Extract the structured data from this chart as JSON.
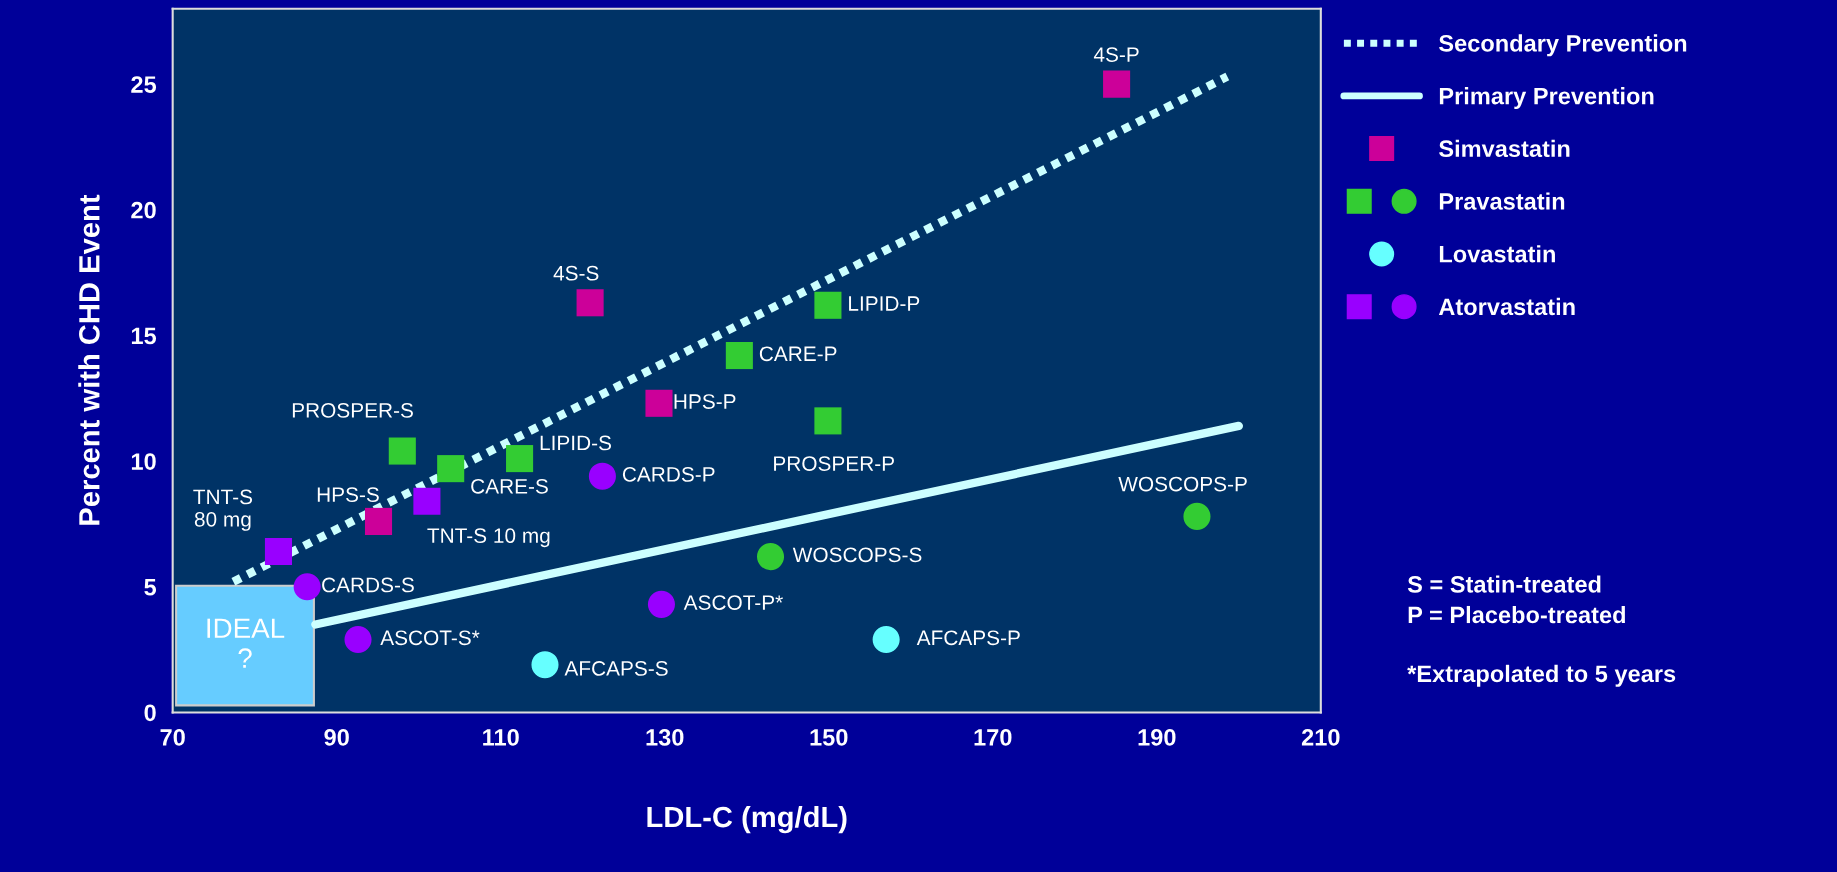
{
  "chart_data": {
    "type": "scatter",
    "xlabel": "LDL-C (mg/dL)",
    "ylabel": "Percent with CHD Event",
    "xlim": [
      70,
      210
    ],
    "xticks": [
      70,
      90,
      110,
      130,
      150,
      170,
      190,
      210
    ],
    "ylim": [
      0,
      28
    ],
    "yticks": [
      0,
      5,
      10,
      15,
      20,
      25
    ],
    "grid": false,
    "legend": "right",
    "series": [
      {
        "name": "Secondary Prevention",
        "type": "line",
        "color": "#ccffff",
        "line_style": "dotted",
        "marker": "none",
        "x": [
          77.4,
          198.6
        ],
        "values": [
          5.2,
          25.3
        ]
      },
      {
        "name": "Primary Prevention",
        "type": "line",
        "color": "#ccffff",
        "line_style": "solid",
        "marker": "none",
        "x": [
          87.4,
          200
        ],
        "values": [
          3.5,
          11.4
        ]
      },
      {
        "name": "Simvastatin",
        "color": "#cc0099",
        "marker": "square",
        "x": [
          185.1,
          120.9,
          129.3,
          95.1
        ],
        "values": [
          25.0,
          16.3,
          12.3,
          7.6
        ]
      },
      {
        "name": "Pravastatin",
        "color": "#33cc33",
        "marker": "square",
        "x": [
          149.9,
          139.1,
          149.9,
          98,
          103.9,
          112.3
        ],
        "values": [
          16.2,
          14.2,
          11.6,
          10.4,
          9.7,
          10.1
        ]
      },
      {
        "color": "#33cc33",
        "marker": "circle",
        "x": [
          194.9,
          142.9
        ],
        "values": [
          7.8,
          6.2
        ]
      },
      {
        "name": "Lovastatin",
        "color": "#66ffff",
        "marker": "circle",
        "x": [
          115.4,
          157
        ],
        "values": [
          1.9,
          2.9
        ]
      },
      {
        "name": "Atorvastatin",
        "color": "#9900ff",
        "marker": "square",
        "x": [
          82.9,
          101
        ],
        "values": [
          6.4,
          8.4
        ]
      },
      {
        "color": "#9900ff",
        "marker": "circle",
        "x": [
          86.4,
          122.4,
          92.6,
          129.6
        ],
        "values": [
          5.0,
          9.4,
          2.9,
          4.3
        ]
      }
    ],
    "annotations": [
      {
        "text": "4S-P",
        "x": 185.1,
        "y": 25.0
      },
      {
        "text": "4S-S",
        "x": 120.9,
        "y": 16.3
      },
      {
        "text": "HPS-P",
        "x": 129.3,
        "y": 12.3
      },
      {
        "text": "HPS-S",
        "x": 95.1,
        "y": 7.6
      },
      {
        "text": "LIPID-P",
        "x": 149.9,
        "y": 16.2
      },
      {
        "text": "CARE-P",
        "x": 139.1,
        "y": 14.2
      },
      {
        "text": "PROSPER-P",
        "x": 149.9,
        "y": 11.6
      },
      {
        "text": "PROSPER-S",
        "x": 98,
        "y": 10.4
      },
      {
        "text": "CARE-S",
        "x": 103.9,
        "y": 9.7
      },
      {
        "text": "LIPID-S",
        "x": 112.3,
        "y": 10.1
      },
      {
        "text": "WOSCOPS-P",
        "x": 194.9,
        "y": 7.8
      },
      {
        "text": "WOSCOPS-S",
        "x": 142.9,
        "y": 6.2
      },
      {
        "text": "AFCAPS-S",
        "x": 115.4,
        "y": 1.9
      },
      {
        "text": "AFCAPS-P",
        "x": 157,
        "y": 2.9
      },
      {
        "text": "TNT-S\n80 mg",
        "x": 82.9,
        "y": 6.4
      },
      {
        "text": "TNT-S 10 mg",
        "x": 101,
        "y": 8.4
      },
      {
        "text": "CARDS-S",
        "x": 86.4,
        "y": 5.0
      },
      {
        "text": "CARDS-P",
        "x": 122.4,
        "y": 9.4
      },
      {
        "text": "ASCOT-S*",
        "x": 92.6,
        "y": 2.9
      },
      {
        "text": "ASCOT-P*",
        "x": 129.6,
        "y": 4.3
      },
      "IDEAL\n?",
      "S = Statin-treated\nP = Placebo-treated",
      "*Extrapolated to 5 years"
    ]
  }
}
